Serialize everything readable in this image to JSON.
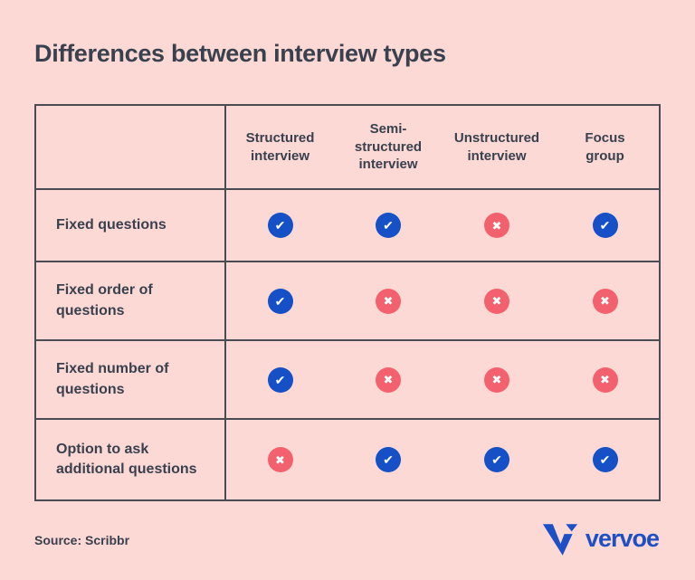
{
  "title": "Differences between interview types",
  "table": {
    "columns": [
      "Structured\ninterview",
      "Semi-\nstructured\ninterview",
      "Unstructured\ninterview",
      "Focus\ngroup"
    ],
    "rows": [
      {
        "label": "Fixed questions",
        "values": [
          "yes",
          "yes",
          "no",
          "yes"
        ]
      },
      {
        "label": "Fixed order of\nquestions",
        "values": [
          "yes",
          "no",
          "no",
          "no"
        ]
      },
      {
        "label": "Fixed number of\nquestions",
        "values": [
          "yes",
          "no",
          "no",
          "no"
        ]
      },
      {
        "label": "Option to ask\nadditional questions",
        "values": [
          "no",
          "yes",
          "yes",
          "yes"
        ]
      }
    ]
  },
  "icons": {
    "check": "✔",
    "cross": "✖",
    "check_icon_name": "check-icon",
    "cross_icon_name": "cross-icon",
    "brand_icon_name": "vervoe-v-icon"
  },
  "footer": {
    "source": "Source: Scribbr",
    "brand": "vervoe"
  },
  "colors": {
    "background": "#fcd9d5",
    "text": "#3a414e",
    "border": "#4b4b54",
    "check_circle": "#1550c6",
    "cross_circle": "#f4616e",
    "icon_glyph": "#ffffff",
    "brand_blue": "#1d4fc5"
  }
}
